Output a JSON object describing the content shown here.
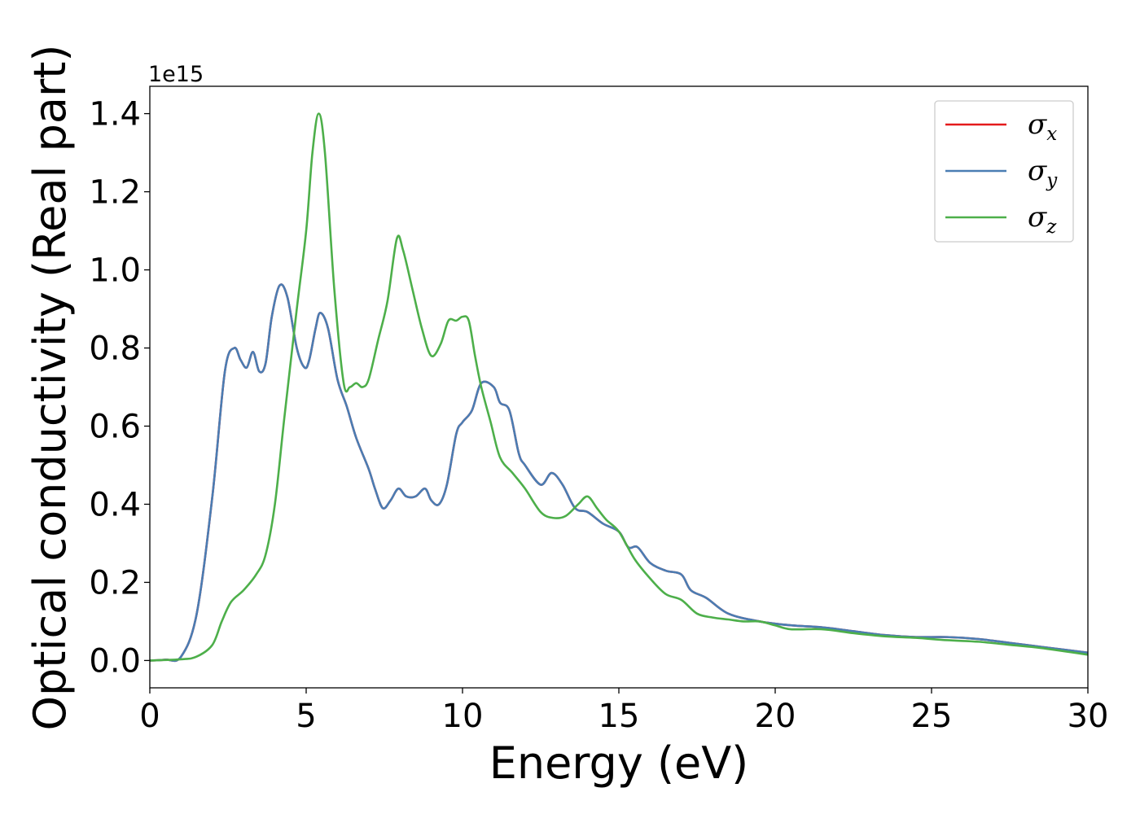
{
  "chart_data": {
    "type": "line",
    "xlabel": "Energy (eV)",
    "ylabel": "Optical conductivity (Real part)",
    "y_offset_text": "1e15",
    "xlim": [
      0,
      30
    ],
    "ylim": [
      -0.07,
      1.47
    ],
    "x_ticks": [
      0,
      5,
      10,
      15,
      20,
      25,
      30
    ],
    "x_tick_labels": [
      "0",
      "5",
      "10",
      "15",
      "20",
      "25",
      "30"
    ],
    "y_ticks": [
      0.0,
      0.2,
      0.4,
      0.6,
      0.8,
      1.0,
      1.2,
      1.4
    ],
    "y_tick_labels": [
      "0.0",
      "0.2",
      "0.4",
      "0.6",
      "0.8",
      "1.0",
      "1.2",
      "1.4"
    ],
    "grid": false,
    "legend_position": "top-right",
    "series": [
      {
        "name": "σx",
        "name_base": "σ",
        "name_sub": "x",
        "color": "#e41a1c",
        "x": [
          0,
          0.5,
          1,
          1.5,
          2,
          2.4,
          2.7,
          2.9,
          3.1,
          3.3,
          3.5,
          3.7,
          3.9,
          4.15,
          4.4,
          4.7,
          4.95,
          5.1,
          5.3,
          5.45,
          5.7,
          6,
          6.3,
          6.6,
          7,
          7.2,
          7.45,
          7.7,
          7.95,
          8.2,
          8.5,
          8.8,
          9,
          9.25,
          9.5,
          9.8,
          10,
          10.3,
          10.6,
          11,
          11.2,
          11.5,
          11.8,
          12,
          12.5,
          12.85,
          13.2,
          13.6,
          14,
          14.5,
          15,
          15.3,
          15.6,
          16,
          16.5,
          17,
          17.3,
          17.8,
          18.5,
          19.5,
          20.5,
          21.5,
          22.5,
          23.5,
          24.5,
          25.5,
          26.5,
          27.5,
          28.5,
          30
        ],
        "y": [
          0,
          0.002,
          0.01,
          0.12,
          0.42,
          0.74,
          0.8,
          0.77,
          0.75,
          0.79,
          0.74,
          0.76,
          0.88,
          0.96,
          0.93,
          0.8,
          0.75,
          0.77,
          0.85,
          0.89,
          0.85,
          0.72,
          0.65,
          0.57,
          0.49,
          0.44,
          0.39,
          0.41,
          0.44,
          0.42,
          0.42,
          0.44,
          0.41,
          0.4,
          0.45,
          0.58,
          0.61,
          0.64,
          0.71,
          0.7,
          0.66,
          0.64,
          0.53,
          0.5,
          0.45,
          0.48,
          0.45,
          0.39,
          0.38,
          0.35,
          0.33,
          0.29,
          0.29,
          0.25,
          0.23,
          0.22,
          0.18,
          0.16,
          0.12,
          0.1,
          0.09,
          0.085,
          0.075,
          0.065,
          0.06,
          0.06,
          0.055,
          0.045,
          0.035,
          0.02
        ]
      },
      {
        "name": "σy",
        "name_base": "σ",
        "name_sub": "y",
        "color": "#4a7db3",
        "x": [
          0,
          0.5,
          1,
          1.5,
          2,
          2.4,
          2.7,
          2.9,
          3.1,
          3.3,
          3.5,
          3.7,
          3.9,
          4.15,
          4.4,
          4.7,
          4.95,
          5.1,
          5.3,
          5.45,
          5.7,
          6,
          6.3,
          6.6,
          7,
          7.2,
          7.45,
          7.7,
          7.95,
          8.2,
          8.5,
          8.8,
          9,
          9.25,
          9.5,
          9.8,
          10,
          10.3,
          10.6,
          11,
          11.2,
          11.5,
          11.8,
          12,
          12.5,
          12.85,
          13.2,
          13.6,
          14,
          14.5,
          15,
          15.3,
          15.6,
          16,
          16.5,
          17,
          17.3,
          17.8,
          18.5,
          19.5,
          20.5,
          21.5,
          22.5,
          23.5,
          24.5,
          25.5,
          26.5,
          27.5,
          28.5,
          30
        ],
        "y": [
          0,
          0.002,
          0.01,
          0.12,
          0.42,
          0.74,
          0.8,
          0.77,
          0.75,
          0.79,
          0.74,
          0.76,
          0.88,
          0.96,
          0.93,
          0.8,
          0.75,
          0.77,
          0.85,
          0.89,
          0.85,
          0.72,
          0.65,
          0.57,
          0.49,
          0.44,
          0.39,
          0.41,
          0.44,
          0.42,
          0.42,
          0.44,
          0.41,
          0.4,
          0.45,
          0.58,
          0.61,
          0.64,
          0.71,
          0.7,
          0.66,
          0.64,
          0.53,
          0.5,
          0.45,
          0.48,
          0.45,
          0.39,
          0.38,
          0.35,
          0.33,
          0.29,
          0.29,
          0.25,
          0.23,
          0.22,
          0.18,
          0.16,
          0.12,
          0.1,
          0.09,
          0.085,
          0.075,
          0.065,
          0.06,
          0.06,
          0.055,
          0.045,
          0.035,
          0.02
        ]
      },
      {
        "name": "σz",
        "name_base": "σ",
        "name_sub": "z",
        "color": "#4daf4a",
        "x": [
          0,
          1,
          1.5,
          2,
          2.3,
          2.6,
          3,
          3.4,
          3.7,
          4,
          4.3,
          4.7,
          5.0,
          5.2,
          5.4,
          5.6,
          5.9,
          6.2,
          6.4,
          6.6,
          6.8,
          7,
          7.3,
          7.6,
          7.9,
          8.1,
          8.4,
          8.7,
          9,
          9.3,
          9.55,
          9.8,
          10,
          10.2,
          10.4,
          10.6,
          10.9,
          11.2,
          11.6,
          12,
          12.5,
          12.9,
          13.3,
          13.7,
          14,
          14.3,
          14.6,
          15,
          15.5,
          16,
          16.5,
          17,
          17.5,
          18,
          18.5,
          19,
          19.5,
          20,
          20.5,
          21.5,
          22.5,
          23.5,
          24.5,
          25.5,
          26.5,
          27.5,
          28.5,
          30
        ],
        "y": [
          0,
          0.003,
          0.01,
          0.04,
          0.1,
          0.15,
          0.18,
          0.22,
          0.27,
          0.4,
          0.62,
          0.9,
          1.1,
          1.3,
          1.4,
          1.3,
          0.95,
          0.71,
          0.7,
          0.71,
          0.7,
          0.72,
          0.82,
          0.92,
          1.08,
          1.05,
          0.95,
          0.85,
          0.78,
          0.81,
          0.87,
          0.87,
          0.88,
          0.87,
          0.78,
          0.7,
          0.61,
          0.52,
          0.48,
          0.44,
          0.38,
          0.365,
          0.37,
          0.4,
          0.42,
          0.39,
          0.36,
          0.33,
          0.26,
          0.21,
          0.17,
          0.155,
          0.12,
          0.11,
          0.105,
          0.1,
          0.1,
          0.09,
          0.08,
          0.08,
          0.07,
          0.062,
          0.058,
          0.052,
          0.048,
          0.04,
          0.032,
          0.015
        ]
      }
    ]
  }
}
